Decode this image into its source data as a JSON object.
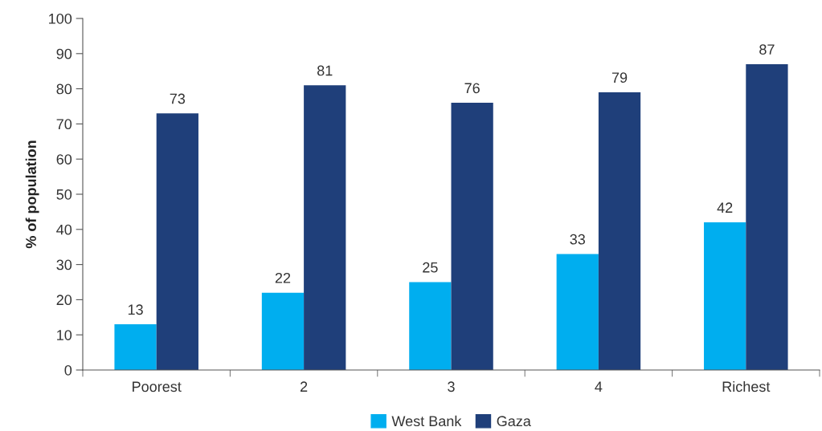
{
  "chart_data": {
    "type": "bar",
    "ylabel": "% of population",
    "categories": [
      "Poorest",
      "2",
      "3",
      "4",
      "Richest"
    ],
    "series": [
      {
        "name": "West Bank",
        "color": "#00aeef",
        "values": [
          13,
          22,
          25,
          33,
          42
        ]
      },
      {
        "name": "Gaza",
        "color": "#1f3f7a",
        "values": [
          73,
          81,
          76,
          79,
          87
        ]
      }
    ],
    "ylim": [
      0,
      100
    ],
    "yticks": [
      0,
      10,
      20,
      30,
      40,
      50,
      60,
      70,
      80,
      90,
      100
    ],
    "data_labels": true,
    "legend": "bottom",
    "grid": false
  }
}
